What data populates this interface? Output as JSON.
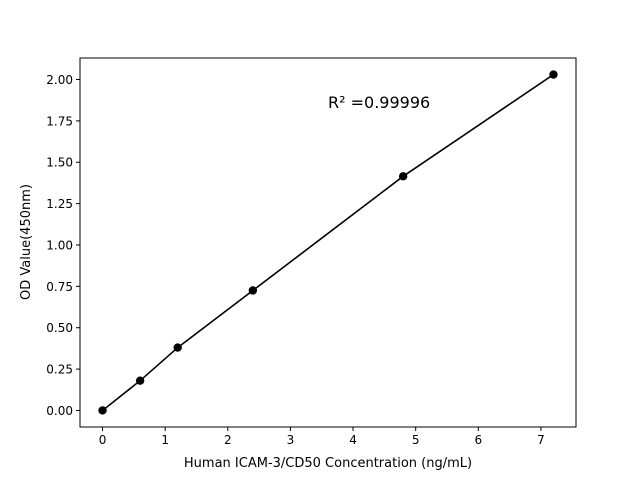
{
  "chart_data": {
    "type": "line",
    "title": "",
    "xlabel": "Human ICAM-3/CD50 Concentration (ng/mL)",
    "ylabel": "OD Value(450nm)",
    "annotation": "R² =0.99996",
    "xlim": [
      -0.36,
      7.56
    ],
    "ylim": [
      -0.1,
      2.13
    ],
    "xticks": [
      0,
      1,
      2,
      3,
      4,
      5,
      6,
      7
    ],
    "xtick_labels": [
      "0",
      "1",
      "2",
      "3",
      "4",
      "5",
      "6",
      "7"
    ],
    "yticks": [
      0,
      0.25,
      0.5,
      0.75,
      1.0,
      1.25,
      1.5,
      1.75,
      2.0
    ],
    "ytick_labels": [
      "0.00",
      "0.25",
      "0.50",
      "0.75",
      "1.00",
      "1.25",
      "1.50",
      "1.75",
      "2.00"
    ],
    "grid": false,
    "series": [
      {
        "x": [
          0,
          0.6,
          1.2,
          2.4,
          4.8,
          7.2
        ],
        "y": [
          0.0,
          0.18,
          0.38,
          0.725,
          1.415,
          2.03
        ],
        "color": "#000000",
        "marker": "circle"
      }
    ]
  }
}
